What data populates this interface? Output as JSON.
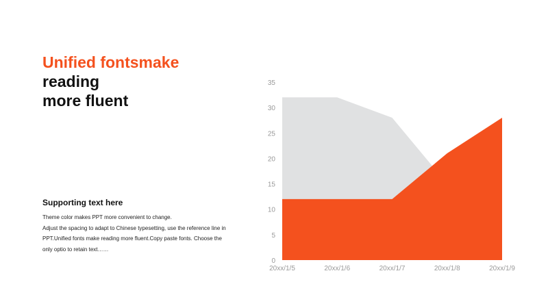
{
  "title": {
    "line1": "Unified fontsmake",
    "line2": "reading",
    "line3": "more fluent"
  },
  "support": {
    "heading": "Supporting text here",
    "lines": [
      "Theme  color makes PPT more convenient  to change.",
      "Adjust the spacing to adapt to Chinese typesetting, use the reference line in",
      "PPT.Unified  fonts make reading more fluent.Copy paste fonts. Choose the",
      "only optio to retain text……"
    ]
  },
  "colors": {
    "accent": "#f4511e",
    "gray": "#e0e1e2"
  },
  "chart_data": {
    "type": "area",
    "categories": [
      "20xx/1/5",
      "20xx/1/6",
      "20xx/1/7",
      "20xx/1/8",
      "20xx/1/9"
    ],
    "series": [
      {
        "values": [
          32,
          32,
          28,
          15,
          14
        ],
        "color": "#e0e1e2"
      },
      {
        "values": [
          12,
          12,
          12,
          21,
          28
        ],
        "color": "#f4511e"
      }
    ],
    "ylim": [
      0,
      35
    ],
    "yticks": [
      0,
      5,
      10,
      15,
      20,
      25,
      30,
      35
    ],
    "grid": false,
    "legend": "none"
  }
}
